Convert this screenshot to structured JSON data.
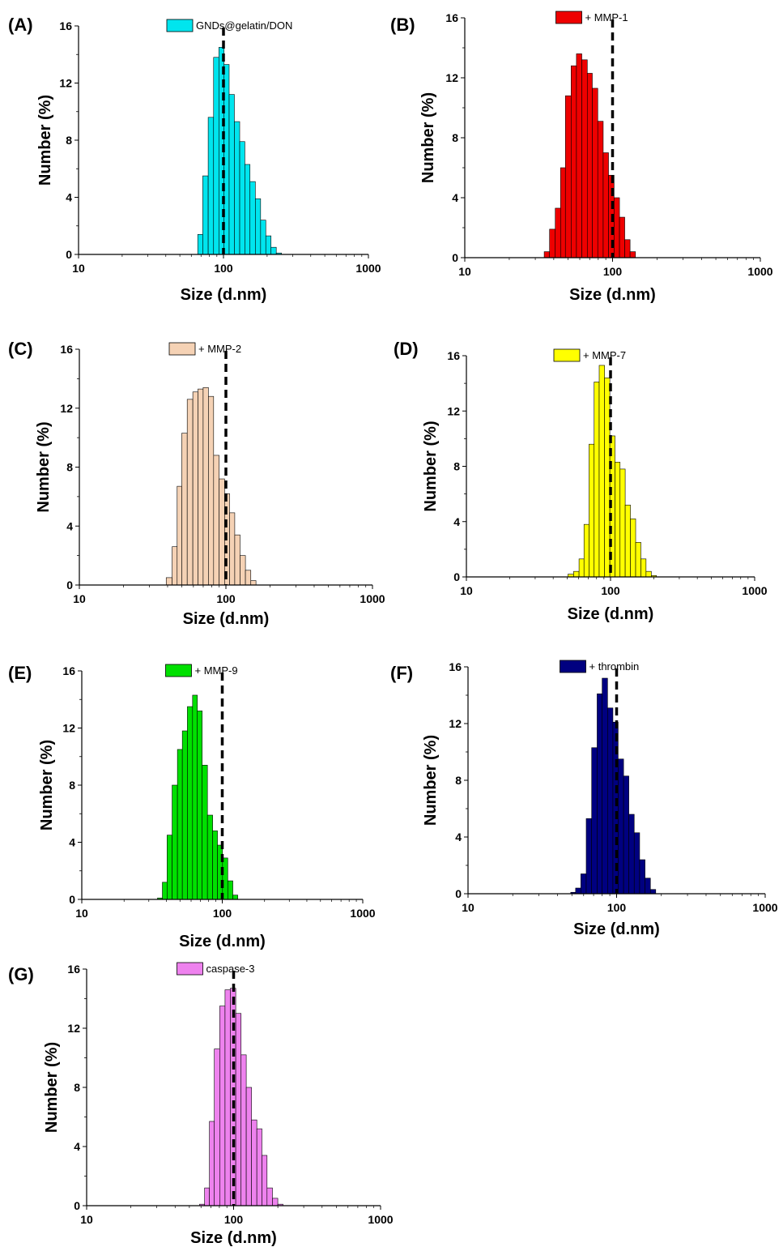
{
  "figure": {
    "panel_order": [
      "A",
      "B",
      "C",
      "D",
      "E",
      "F",
      "G"
    ]
  },
  "chart_data": [
    {
      "panel": "(A)",
      "type": "bar",
      "xscale": "log",
      "xlabel": "Size (d.nm)",
      "ylabel": "Number (%)",
      "xlim": [
        10,
        1000
      ],
      "ylim": [
        0,
        16
      ],
      "xticks": [
        "10",
        "100",
        "1000"
      ],
      "yticks": [
        "0",
        "4",
        "8",
        "12",
        "16"
      ],
      "reference_line_x": 100,
      "series": [
        {
          "name": "GNDs@gelatin/DON",
          "color": "#00E5EE",
          "bin_centers": [
            59,
            64,
            69,
            75,
            82,
            89,
            97,
            105,
            114,
            124,
            135,
            146,
            159,
            173,
            188,
            204,
            222,
            241,
            262,
            285,
            310,
            336,
            366,
            397,
            432,
            469
          ],
          "values": [
            0,
            0,
            1.4,
            5.5,
            9.6,
            13.8,
            14.5,
            13.3,
            11.2,
            9.3,
            7.9,
            6.3,
            5.1,
            3.9,
            2.4,
            1.3,
            0.5,
            0.1,
            0,
            0,
            0,
            0,
            0,
            0,
            0,
            0
          ]
        }
      ]
    },
    {
      "panel": "(B)",
      "type": "bar",
      "xscale": "log",
      "xlabel": "Size (d.nm)",
      "ylabel": "Number (%)",
      "xlim": [
        10,
        1000
      ],
      "ylim": [
        0,
        16
      ],
      "xticks": [
        "10",
        "100",
        "1000"
      ],
      "yticks": [
        "0",
        "4",
        "8",
        "12",
        "16"
      ],
      "reference_line_x": 100,
      "series": [
        {
          "name": "+ MMP-1",
          "color": "#EE0000",
          "bin_centers": [
            33,
            36,
            39,
            43,
            46,
            50,
            55,
            59,
            65,
            70,
            76,
            83,
            90,
            98,
            107,
            116,
            126,
            137,
            149,
            162,
            176,
            191,
            208,
            226,
            245,
            267,
            290,
            315,
            342,
            372
          ],
          "values": [
            0,
            0.4,
            1.9,
            3.3,
            6.0,
            10.8,
            12.8,
            13.6,
            13.2,
            12.3,
            11.3,
            9.1,
            7.0,
            5.5,
            4.0,
            2.7,
            1.2,
            0.4,
            0,
            0,
            0,
            0,
            0,
            0,
            0,
            0,
            0,
            0,
            0,
            0
          ]
        }
      ]
    },
    {
      "panel": "(C)",
      "type": "bar",
      "xscale": "log",
      "xlabel": "Size (d.nm)",
      "ylabel": "Number (%)",
      "xlim": [
        10,
        1000
      ],
      "ylim": [
        0,
        16
      ],
      "xticks": [
        "10",
        "100",
        "1000"
      ],
      "yticks": [
        "0",
        "4",
        "8",
        "12",
        "16"
      ],
      "reference_line_x": 100,
      "series": [
        {
          "name": "+ MMP-2",
          "color": "#F5D2B5",
          "bin_centers": [
            41,
            45,
            48,
            52,
            57,
            62,
            67,
            73,
            79,
            86,
            94,
            102,
            110,
            120,
            130,
            142,
            154,
            167,
            182,
            197,
            214,
            233,
            253,
            275,
            299,
            325
          ],
          "values": [
            0.5,
            2.6,
            6.7,
            10.3,
            12.6,
            13.1,
            13.3,
            13.4,
            12.8,
            8.8,
            7.2,
            6.2,
            4.9,
            3.4,
            2.0,
            1.0,
            0.3,
            0,
            0,
            0,
            0,
            0,
            0,
            0,
            0,
            0
          ]
        }
      ]
    },
    {
      "panel": "(D)",
      "type": "bar",
      "xscale": "log",
      "xlabel": "Size (d.nm)",
      "ylabel": "Number (%)",
      "xlim": [
        10,
        1000
      ],
      "ylim": [
        0,
        16
      ],
      "xticks": [
        "10",
        "100",
        "1000"
      ],
      "yticks": [
        "0",
        "4",
        "8",
        "12",
        "16"
      ],
      "reference_line_x": 100,
      "series": [
        {
          "name": "+ MMP-7",
          "color": "#FFFF00",
          "bin_centers": [
            53,
            58,
            63,
            68,
            74,
            80,
            87,
            95,
            103,
            112,
            121,
            132,
            143,
            156,
            169,
            184,
            200,
            217,
            236,
            256,
            278,
            302,
            329,
            357,
            388,
            421,
            458,
            497
          ],
          "values": [
            0.2,
            0.4,
            1.3,
            3.8,
            9.6,
            14.1,
            15.3,
            14.4,
            10.2,
            8.3,
            7.8,
            5.2,
            4.2,
            2.5,
            1.3,
            0.4,
            0.1,
            0,
            0,
            0,
            0,
            0,
            0,
            0,
            0,
            0,
            0,
            0
          ]
        }
      ]
    },
    {
      "panel": "(E)",
      "type": "bar",
      "xscale": "log",
      "xlabel": "Size (d.nm)",
      "ylabel": "Number (%)",
      "xlim": [
        10,
        1000
      ],
      "ylim": [
        0,
        16
      ],
      "xticks": [
        "10",
        "100",
        "1000"
      ],
      "yticks": [
        "0",
        "4",
        "8",
        "12",
        "16"
      ],
      "reference_line_x": 100,
      "series": [
        {
          "name": "+ MMP-9",
          "color": "#00E000",
          "bin_centers": [
            36,
            39,
            42,
            46,
            50,
            54,
            59,
            64,
            69,
            75,
            82,
            89,
            96,
            105,
            114,
            124,
            134,
            146,
            159,
            172,
            187,
            203,
            221,
            240,
            261,
            283,
            308,
            334
          ],
          "values": [
            0.1,
            1.2,
            4.5,
            8.0,
            10.5,
            11.8,
            13.5,
            14.3,
            13.2,
            9.4,
            5.9,
            4.8,
            3.8,
            2.9,
            1.3,
            0.3,
            0,
            0,
            0,
            0,
            0,
            0,
            0,
            0,
            0,
            0,
            0,
            0
          ]
        }
      ]
    },
    {
      "panel": "(F)",
      "type": "bar",
      "xscale": "log",
      "xlabel": "Size (d.nm)",
      "ylabel": "Number (%)",
      "xlim": [
        10,
        1000
      ],
      "ylim": [
        0,
        16
      ],
      "xticks": [
        "10",
        "100",
        "1000"
      ],
      "yticks": [
        "0",
        "4",
        "8",
        "12",
        "16"
      ],
      "reference_line_x": 100,
      "series": [
        {
          "name": "+ thrombin",
          "color": "#000080",
          "bin_centers": [
            51,
            55,
            60,
            65,
            71,
            77,
            83,
            91,
            98,
            107,
            116,
            126,
            137,
            149,
            162,
            176,
            191,
            207,
            225,
            245,
            266,
            289,
            314,
            341,
            370,
            402,
            437,
            475,
            516
          ],
          "values": [
            0.1,
            0.4,
            1.4,
            5.3,
            10.3,
            14.1,
            15.2,
            13.1,
            12.1,
            9.5,
            8.3,
            5.6,
            4.3,
            2.4,
            1.1,
            0.3,
            0,
            0,
            0,
            0,
            0,
            0,
            0,
            0,
            0,
            0,
            0,
            0,
            0
          ]
        }
      ]
    },
    {
      "panel": "(G)",
      "type": "bar",
      "xscale": "log",
      "xlabel": "Size (d.nm)",
      "ylabel": "Number (%)",
      "xlim": [
        10,
        1000
      ],
      "ylim": [
        0,
        16
      ],
      "xticks": [
        "10",
        "100",
        "1000"
      ],
      "yticks": [
        "0",
        "4",
        "8",
        "12",
        "16"
      ],
      "reference_line_x": 100,
      "series": [
        {
          "name": "caspase-3",
          "color": "#EE82EE",
          "bin_centers": [
            61,
            66,
            71,
            77,
            84,
            91,
            99,
            108,
            117,
            127,
            138,
            150,
            162,
            176,
            192,
            208,
            226,
            245,
            266,
            289,
            314,
            341,
            371,
            402,
            437,
            475,
            516,
            560
          ],
          "values": [
            0.1,
            1.2,
            5.7,
            10.6,
            13.5,
            14.6,
            14.7,
            13.0,
            10.2,
            8.0,
            5.8,
            5.2,
            3.4,
            1.2,
            0.5,
            0.1,
            0,
            0,
            0,
            0,
            0,
            0,
            0,
            0,
            0,
            0,
            0,
            0
          ]
        }
      ]
    }
  ]
}
